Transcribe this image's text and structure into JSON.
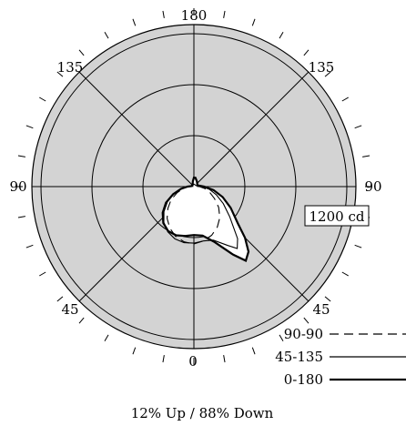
{
  "chart_data": {
    "type": "polar",
    "angle_labels": {
      "top": "180",
      "upper_left": "135",
      "upper_right": "135",
      "left": "90",
      "right": "90",
      "lower_left": "45",
      "lower_right": "45",
      "bottom": "0"
    },
    "scale_label": "1200 cd",
    "scale_cd": 1200,
    "rings": 3,
    "legend": [
      {
        "name": "90-90",
        "dash": "dashed"
      },
      {
        "name": "45-135",
        "dash": "solid-thin"
      },
      {
        "name": "0-180",
        "dash": "solid-thick"
      }
    ],
    "series": [
      {
        "name": "90-90",
        "points": [
          {
            "angle": 0,
            "cd": 1350
          },
          {
            "angle": 10,
            "cd": 1300
          },
          {
            "angle": 20,
            "cd": 1220
          },
          {
            "angle": 30,
            "cd": 1100
          },
          {
            "angle": 40,
            "cd": 950
          },
          {
            "angle": 50,
            "cd": 760
          },
          {
            "angle": 60,
            "cd": 560
          },
          {
            "angle": 70,
            "cd": 400
          },
          {
            "angle": 80,
            "cd": 260
          },
          {
            "angle": 90,
            "cd": 130
          },
          {
            "angle": 110,
            "cd": 20
          },
          {
            "angle": 180,
            "cd": 40
          },
          {
            "angle": 250,
            "cd": 20
          },
          {
            "angle": 270,
            "cd": 130
          },
          {
            "angle": 280,
            "cd": 260
          },
          {
            "angle": 290,
            "cd": 420
          },
          {
            "angle": 300,
            "cd": 620
          },
          {
            "angle": 310,
            "cd": 800
          },
          {
            "angle": 320,
            "cd": 980
          },
          {
            "angle": 330,
            "cd": 1130
          },
          {
            "angle": 340,
            "cd": 1250
          },
          {
            "angle": 350,
            "cd": 1320
          }
        ]
      },
      {
        "name": "45-135",
        "points": [
          {
            "angle": 0,
            "cd": 1330
          },
          {
            "angle": 10,
            "cd": 1300
          },
          {
            "angle": 20,
            "cd": 1340
          },
          {
            "angle": 30,
            "cd": 1600
          },
          {
            "angle": 35,
            "cd": 1780
          },
          {
            "angle": 40,
            "cd": 1600
          },
          {
            "angle": 50,
            "cd": 1100
          },
          {
            "angle": 60,
            "cd": 800
          },
          {
            "angle": 70,
            "cd": 560
          },
          {
            "angle": 80,
            "cd": 370
          },
          {
            "angle": 90,
            "cd": 200
          },
          {
            "angle": 110,
            "cd": 60
          },
          {
            "angle": 180,
            "cd": 60
          },
          {
            "angle": 250,
            "cd": 40
          },
          {
            "angle": 270,
            "cd": 160
          },
          {
            "angle": 280,
            "cd": 300
          },
          {
            "angle": 290,
            "cd": 500
          },
          {
            "angle": 300,
            "cd": 720
          },
          {
            "angle": 310,
            "cd": 920
          },
          {
            "angle": 320,
            "cd": 1100
          },
          {
            "angle": 330,
            "cd": 1230
          },
          {
            "angle": 340,
            "cd": 1310
          },
          {
            "angle": 350,
            "cd": 1340
          }
        ]
      },
      {
        "name": "0-180",
        "points": [
          {
            "angle": 0,
            "cd": 1140
          },
          {
            "angle": 10,
            "cd": 1170
          },
          {
            "angle": 20,
            "cd": 1380
          },
          {
            "angle": 30,
            "cd": 1850
          },
          {
            "angle": 35,
            "cd": 2130
          },
          {
            "angle": 40,
            "cd": 2000
          },
          {
            "angle": 45,
            "cd": 1700
          },
          {
            "angle": 50,
            "cd": 1350
          },
          {
            "angle": 60,
            "cd": 1000
          },
          {
            "angle": 70,
            "cd": 720
          },
          {
            "angle": 80,
            "cd": 470
          },
          {
            "angle": 90,
            "cd": 240
          },
          {
            "angle": 110,
            "cd": 90
          },
          {
            "angle": 150,
            "cd": 140
          },
          {
            "angle": 170,
            "cd": 210
          },
          {
            "angle": 180,
            "cd": 210
          },
          {
            "angle": 190,
            "cd": 130
          },
          {
            "angle": 220,
            "cd": 50
          },
          {
            "angle": 260,
            "cd": 60
          },
          {
            "angle": 270,
            "cd": 150
          },
          {
            "angle": 280,
            "cd": 310
          },
          {
            "angle": 290,
            "cd": 520
          },
          {
            "angle": 300,
            "cd": 760
          },
          {
            "angle": 310,
            "cd": 960
          },
          {
            "angle": 320,
            "cd": 1120
          },
          {
            "angle": 330,
            "cd": 1210
          },
          {
            "angle": 340,
            "cd": 1220
          },
          {
            "angle": 350,
            "cd": 1180
          }
        ]
      }
    ],
    "footer": "12% Up / 88% Down"
  }
}
